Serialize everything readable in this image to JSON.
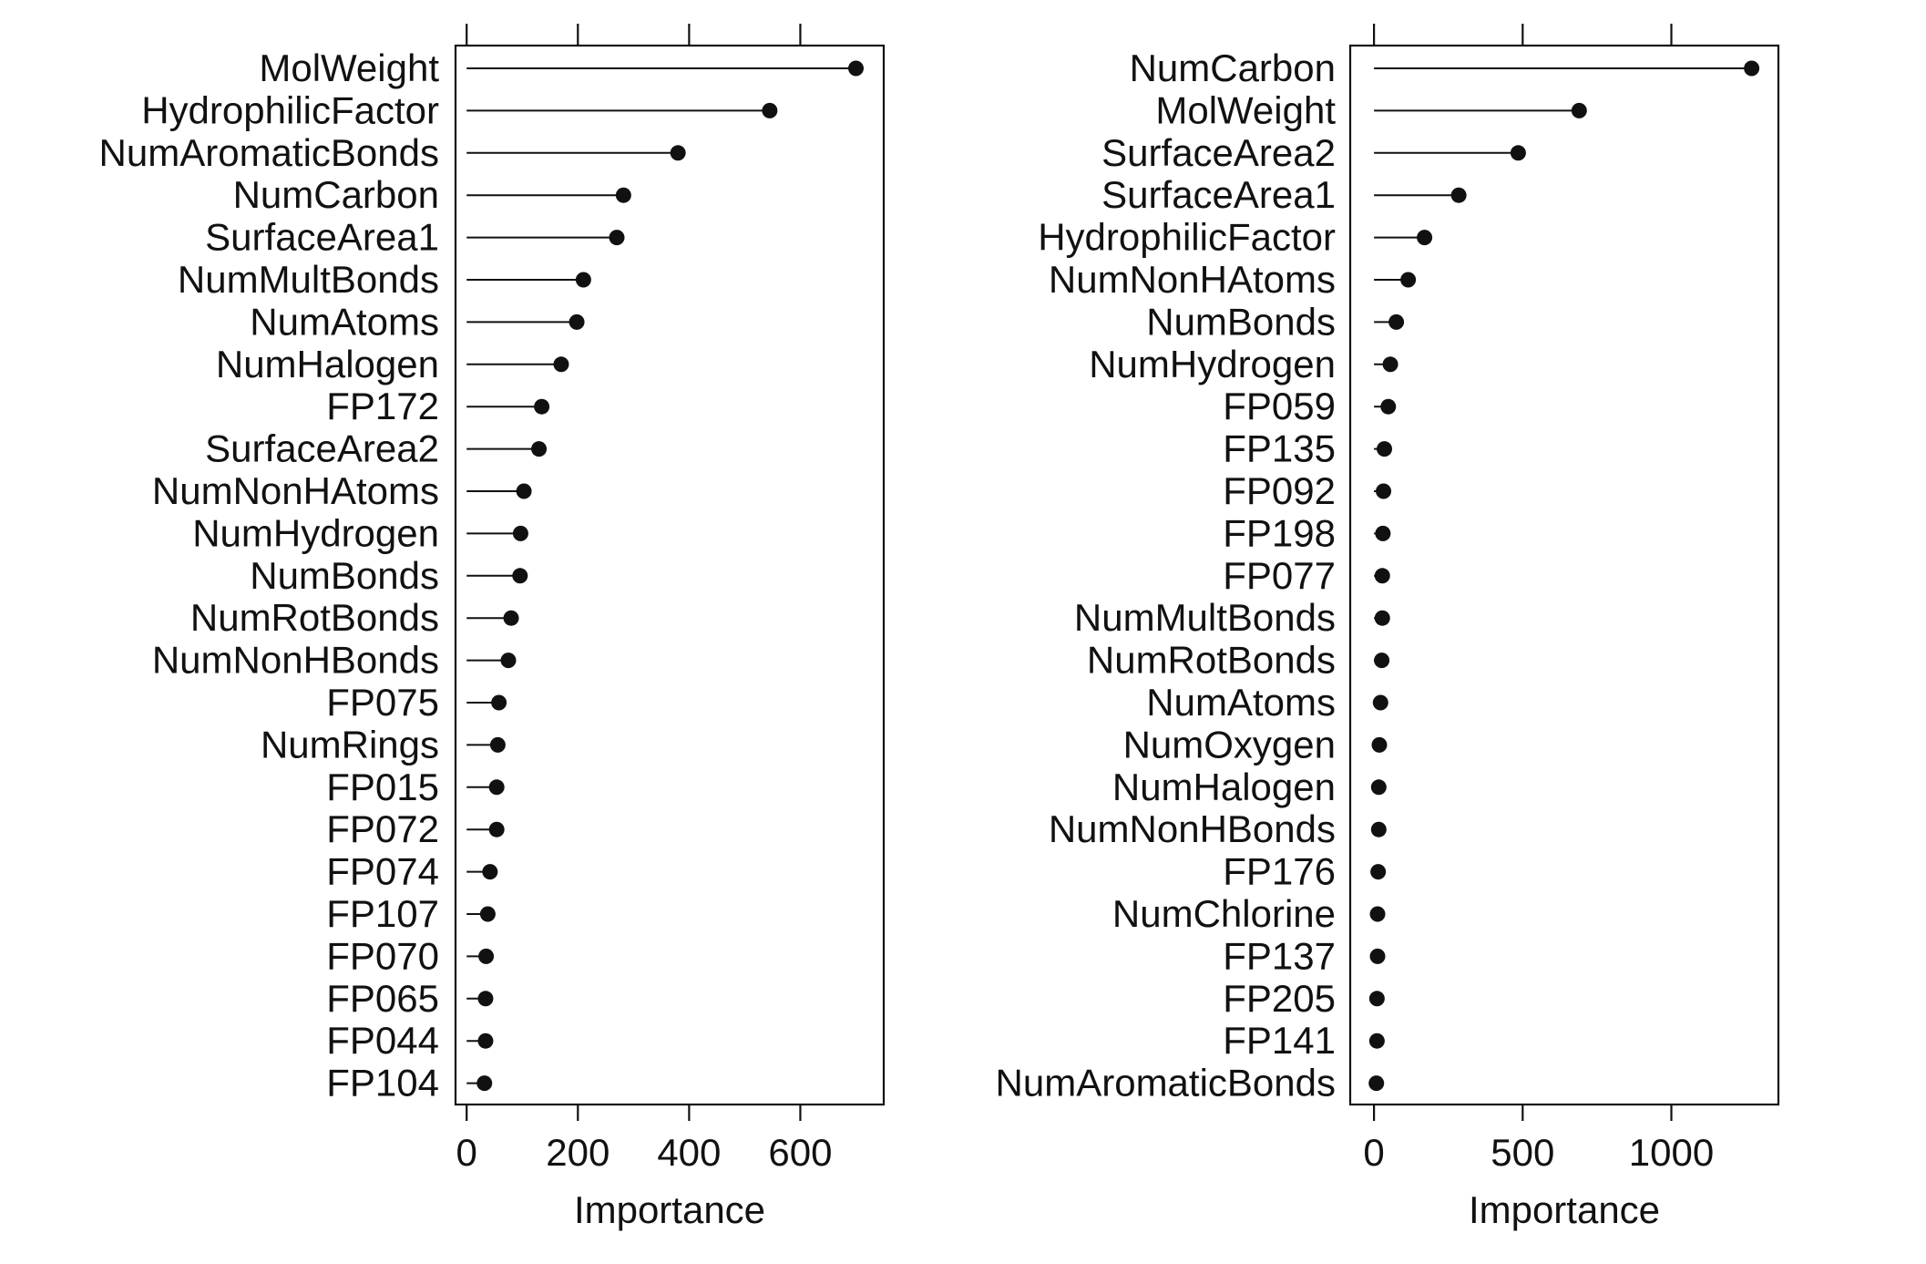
{
  "chart_data": [
    {
      "type": "dot",
      "xlabel": "Importance",
      "xlim": [
        -20,
        750
      ],
      "xticks": [
        0,
        200,
        400,
        600
      ],
      "grid": false,
      "categories": [
        "MolWeight",
        "HydrophilicFactor",
        "NumAromaticBonds",
        "NumCarbon",
        "SurfaceArea1",
        "NumMultBonds",
        "NumAtoms",
        "NumHalogen",
        "FP172",
        "SurfaceArea2",
        "NumNonHAtoms",
        "NumHydrogen",
        "NumBonds",
        "NumRotBonds",
        "NumNonHBonds",
        "FP075",
        "NumRings",
        "FP015",
        "FP072",
        "FP074",
        "FP107",
        "FP070",
        "FP065",
        "FP044",
        "FP104"
      ],
      "values": [
        700,
        545,
        380,
        282,
        270,
        210,
        198,
        170,
        135,
        130,
        103,
        97,
        96,
        80,
        75,
        58,
        56,
        54,
        54,
        42,
        38,
        35,
        34,
        34,
        32
      ]
    },
    {
      "type": "dot",
      "xlabel": "Importance",
      "xlim": [
        -80,
        1360
      ],
      "xticks": [
        0,
        500,
        1000
      ],
      "grid": false,
      "categories": [
        "NumCarbon",
        "MolWeight",
        "SurfaceArea2",
        "SurfaceArea1",
        "HydrophilicFactor",
        "NumNonHAtoms",
        "NumBonds",
        "NumHydrogen",
        "FP059",
        "FP135",
        "FP092",
        "FP198",
        "FP077",
        "NumMultBonds",
        "NumRotBonds",
        "NumAtoms",
        "NumOxygen",
        "NumHalogen",
        "NumNonHBonds",
        "FP176",
        "NumChlorine",
        "FP137",
        "FP205",
        "FP141",
        "NumAromaticBonds"
      ],
      "values": [
        1270,
        690,
        485,
        285,
        170,
        115,
        75,
        55,
        48,
        35,
        32,
        30,
        28,
        28,
        26,
        22,
        18,
        16,
        16,
        14,
        12,
        12,
        10,
        10,
        8
      ]
    }
  ]
}
